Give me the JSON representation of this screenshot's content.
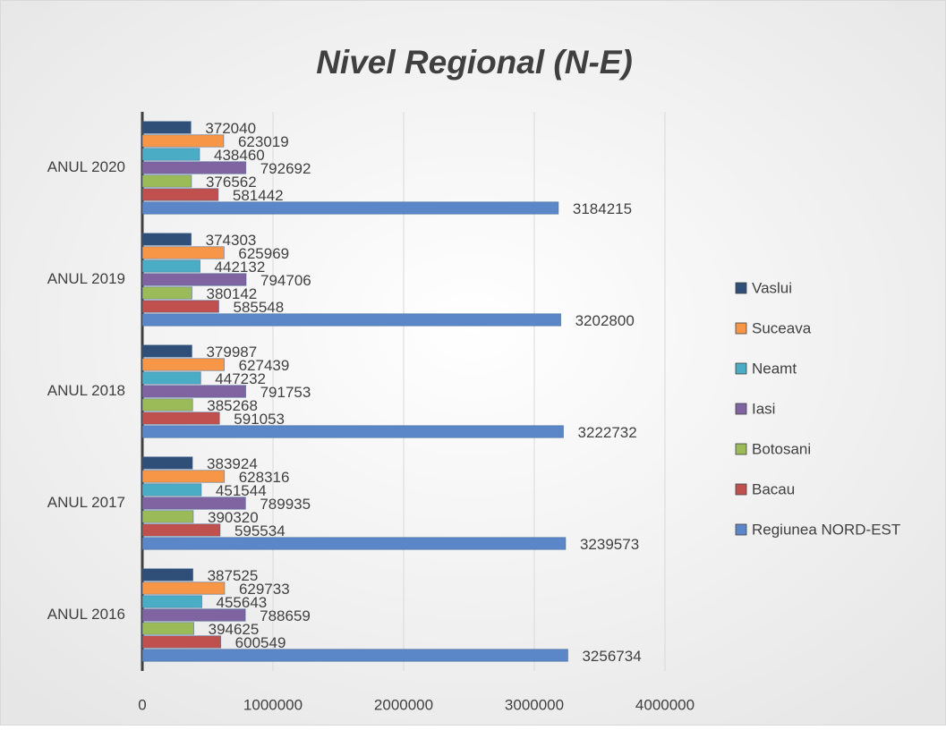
{
  "chart_data": {
    "type": "hbar",
    "title": "Nivel Regional (N-E)",
    "categories": [
      "ANUL 2016",
      "ANUL 2017",
      "ANUL 2018",
      "ANUL 2019",
      "ANUL 2020"
    ],
    "series": [
      {
        "name": "Regiunea NORD-EST",
        "color": "#5b87c8",
        "values": [
          3256734,
          3239573,
          3222732,
          3202800,
          3184215
        ]
      },
      {
        "name": "Bacau",
        "color": "#c0504d",
        "values": [
          600549,
          595534,
          591053,
          585548,
          581442
        ]
      },
      {
        "name": "Botosani",
        "color": "#9bbb59",
        "values": [
          394625,
          390320,
          385268,
          380142,
          376562
        ]
      },
      {
        "name": "Iasi",
        "color": "#8064a2",
        "values": [
          788659,
          789935,
          791753,
          794706,
          792692
        ]
      },
      {
        "name": "Neamt",
        "color": "#4bacc6",
        "values": [
          455643,
          451544,
          447232,
          442132,
          438460
        ]
      },
      {
        "name": "Suceava",
        "color": "#f79646",
        "values": [
          629733,
          628316,
          627439,
          625969,
          623019
        ]
      },
      {
        "name": "Vaslui",
        "color": "#2f4f78",
        "values": [
          387525,
          383924,
          379987,
          374303,
          372040
        ]
      }
    ],
    "xlim": [
      0,
      4000000
    ],
    "xticks": [
      0,
      1000000,
      2000000,
      3000000,
      4000000
    ],
    "grid": true,
    "legend": "right"
  }
}
